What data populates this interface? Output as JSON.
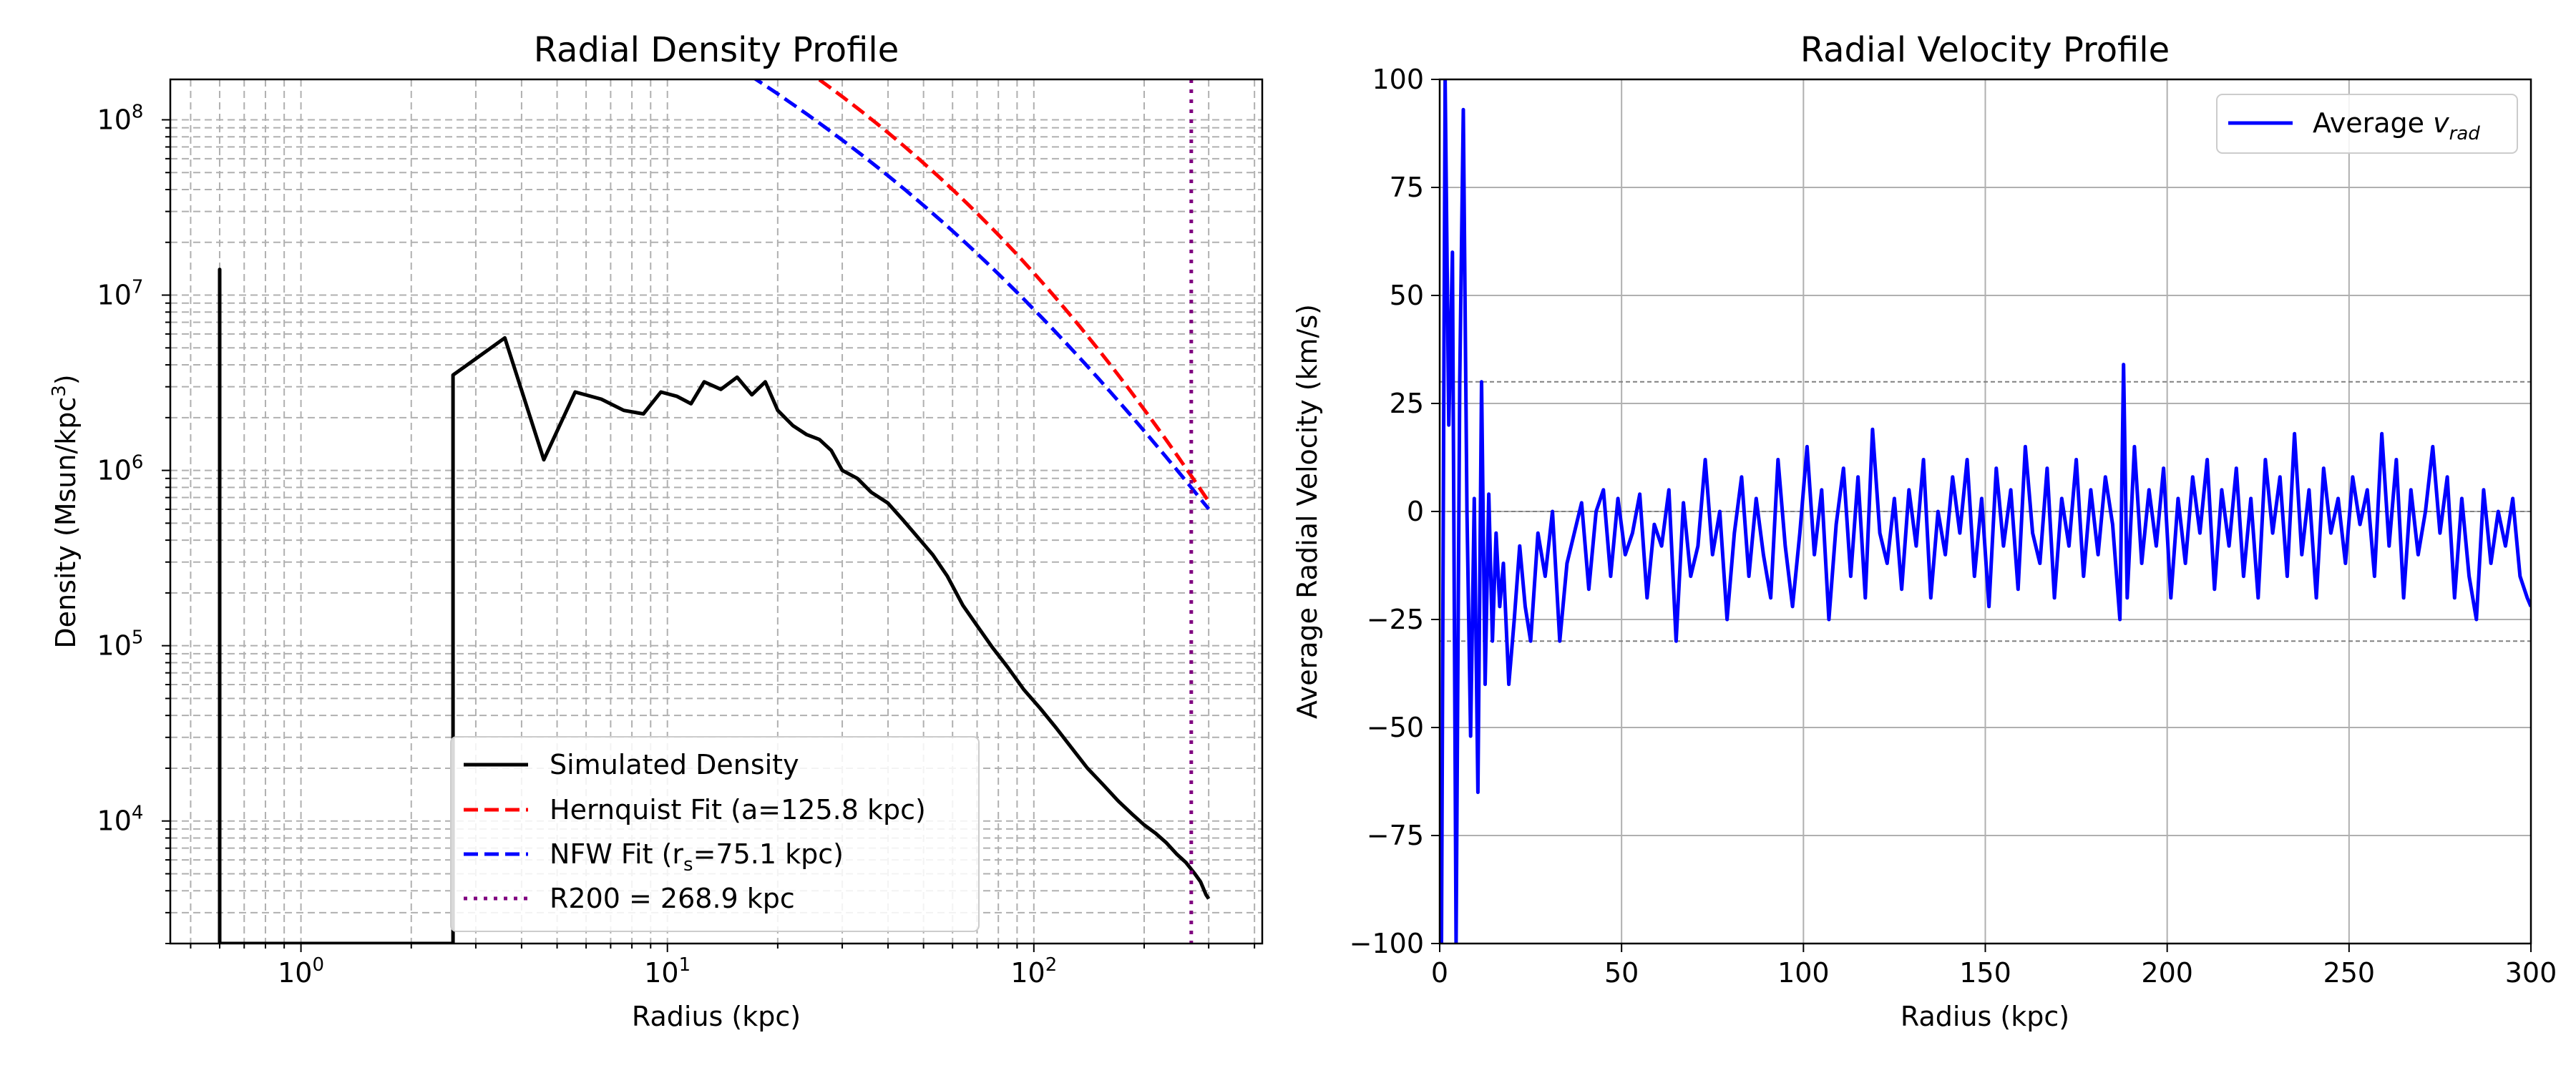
{
  "chart_data": [
    {
      "type": "line",
      "title": "Radial Density Profile",
      "xlabel": "Radius (kpc)",
      "ylabel": "Density (Msun/kpc^3)",
      "xscale": "log",
      "yscale": "log",
      "xlim": [
        0.44,
        420
      ],
      "ylim": [
        2000,
        170000000
      ],
      "xticks": [
        1,
        10,
        100
      ],
      "xtick_labels": [
        "10^0",
        "10^1",
        "10^2"
      ],
      "yticks": [
        10000,
        100000,
        1000000,
        10000000,
        100000000
      ],
      "ytick_labels": [
        "10^4",
        "10^5",
        "10^6",
        "10^7",
        "10^8"
      ],
      "grid": "major and minor, dashed",
      "legend_position": "lower center",
      "series": [
        {
          "name": "Simulated Density",
          "color": "#000000",
          "style": "solid",
          "x": [
            0.6,
            0.6,
            0.6,
            2.6,
            2.6,
            3.6,
            4.6,
            5.6,
            6.6,
            7.6,
            8.6,
            9.6,
            10.6,
            11.6,
            12.6,
            14,
            15.5,
            17,
            18.5,
            20,
            22,
            24,
            26,
            28,
            30,
            33,
            36,
            40,
            44,
            48,
            53,
            58,
            64,
            70,
            77,
            85,
            94,
            104,
            115,
            127,
            140,
            155,
            170,
            185,
            200,
            215,
            230,
            245,
            260,
            275,
            285,
            295,
            300
          ],
          "y": [
            2000,
            14000000,
            2000,
            2000,
            3500000,
            5700000,
            1150000,
            2800000,
            2550000,
            2200000,
            2100000,
            2800000,
            2650000,
            2400000,
            3200000,
            2900000,
            3400000,
            2700000,
            3200000,
            2200000,
            1800000,
            1600000,
            1500000,
            1300000,
            1000000,
            900000,
            750000,
            650000,
            520000,
            420000,
            330000,
            250000,
            170000,
            130000,
            98000,
            75000,
            56000,
            44000,
            34000,
            26000,
            20000,
            16000,
            13000,
            11000,
            9500,
            8500,
            7500,
            6500,
            5800,
            5000,
            4500,
            3800,
            3600
          ]
        },
        {
          "name": "Hernquist Fit (a=125.8 kpc)",
          "color": "#ff0000",
          "style": "dashed",
          "model": "hernquist",
          "params": {
            "a": 125.8,
            "A": 7730000000
          },
          "x_range": [
            0.6,
            300
          ]
        },
        {
          "name": "NFW Fit (r_s=75.1 kpc)",
          "color": "#0000ff",
          "style": "dashed",
          "model": "nfw",
          "params": {
            "rs": 75.1,
            "A": 60000000
          },
          "x_range": [
            0.6,
            300
          ]
        },
        {
          "name": "R200 = 268.9 kpc",
          "color": "#800080",
          "style": "dotted",
          "vline": 268.9
        }
      ]
    },
    {
      "type": "line",
      "title": "Radial Velocity Profile",
      "xlabel": "Radius (kpc)",
      "ylabel": "Average Radial Velocity (km/s)",
      "xlim": [
        0,
        300
      ],
      "ylim": [
        -100,
        100
      ],
      "xticks": [
        0,
        50,
        100,
        150,
        200,
        250,
        300
      ],
      "yticks": [
        -100,
        -75,
        -50,
        -25,
        0,
        25,
        50,
        75,
        100
      ],
      "grid": "major, solid",
      "legend_position": "upper right",
      "hlines": [
        30,
        0,
        -30
      ],
      "series": [
        {
          "name": "Average v_rad",
          "color": "#0000ff",
          "style": "solid",
          "x": [
            0.5,
            1.5,
            2.5,
            3.5,
            4.5,
            5.5,
            6.5,
            7.5,
            8.5,
            9.5,
            10.5,
            11.5,
            12.5,
            13.5,
            14.5,
            15.5,
            16.5,
            17.5,
            19,
            20.5,
            22,
            23.5,
            25,
            27,
            29,
            31,
            33,
            35,
            37,
            39,
            41,
            43,
            45,
            47,
            49,
            51,
            53,
            55,
            57,
            59,
            61,
            63,
            65,
            67,
            69,
            71,
            73,
            75,
            77,
            79,
            81,
            83,
            85,
            87,
            89,
            91,
            93,
            95,
            97,
            99,
            101,
            103,
            105,
            107,
            109,
            111,
            113,
            115,
            117,
            119,
            121,
            123,
            125,
            127,
            129,
            131,
            133,
            135,
            137,
            139,
            141,
            143,
            145,
            147,
            149,
            151,
            153,
            155,
            157,
            159,
            161,
            163,
            165,
            167,
            169,
            171,
            173,
            175,
            177,
            179,
            181,
            183,
            185,
            187,
            188,
            189,
            191,
            193,
            195,
            197,
            199,
            201,
            203,
            205,
            207,
            209,
            211,
            213,
            215,
            217,
            219,
            221,
            223,
            225,
            227,
            229,
            231,
            233,
            235,
            237,
            239,
            241,
            243,
            245,
            247,
            249,
            251,
            253,
            255,
            257,
            259,
            261,
            263,
            265,
            267,
            269,
            271,
            273,
            275,
            277,
            279,
            281,
            283,
            285,
            287,
            289,
            291,
            293,
            295,
            297,
            299,
            300
          ],
          "y": [
            -100,
            100,
            20,
            60,
            -100,
            30,
            93,
            0,
            -52,
            3,
            -65,
            30,
            -40,
            4,
            -30,
            -5,
            -22,
            -12,
            -40,
            -25,
            -8,
            -22,
            -30,
            -5,
            -15,
            0,
            -30,
            -12,
            -5,
            2,
            -18,
            0,
            5,
            -15,
            3,
            -10,
            -5,
            4,
            -20,
            -3,
            -8,
            5,
            -30,
            2,
            -15,
            -8,
            12,
            -10,
            0,
            -25,
            -5,
            8,
            -15,
            3,
            -10,
            -20,
            12,
            -8,
            -22,
            -5,
            15,
            -10,
            5,
            -25,
            -3,
            10,
            -15,
            8,
            -20,
            19,
            -5,
            -12,
            3,
            -18,
            5,
            -8,
            12,
            -20,
            0,
            -10,
            8,
            -5,
            12,
            -15,
            3,
            -22,
            10,
            -8,
            5,
            -18,
            15,
            -5,
            -12,
            10,
            -20,
            3,
            -8,
            12,
            -15,
            5,
            -10,
            8,
            -3,
            -25,
            34,
            -20,
            15,
            -12,
            5,
            -8,
            10,
            -20,
            3,
            -12,
            8,
            -5,
            12,
            -18,
            5,
            -8,
            10,
            -15,
            3,
            -20,
            12,
            -5,
            8,
            -15,
            18,
            -10,
            5,
            -20,
            10,
            -5,
            3,
            -12,
            8,
            -3,
            5,
            -15,
            18,
            -8,
            12,
            -20,
            5,
            -10,
            0,
            15,
            -5,
            8,
            -20,
            3,
            -15,
            -25,
            5,
            -12,
            0,
            -8,
            3,
            -15,
            -20,
            -22
          ]
        }
      ]
    }
  ]
}
